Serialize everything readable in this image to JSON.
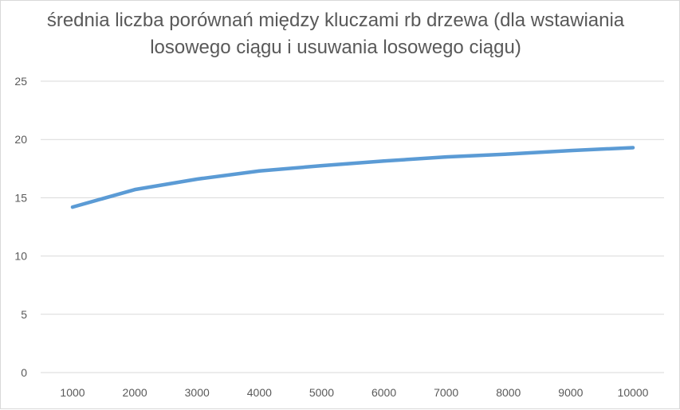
{
  "chart_data": {
    "type": "line",
    "title": "średnia liczba porównań między kluczami rb drzewa (dla wstawiania losowego ciągu i usuwania losowego ciągu)",
    "xlabel": "",
    "ylabel": "",
    "categories": [
      "1000",
      "2000",
      "3000",
      "4000",
      "5000",
      "6000",
      "7000",
      "8000",
      "9000",
      "10000"
    ],
    "series": [
      {
        "values": [
          14.2,
          15.7,
          16.6,
          17.3,
          17.75,
          18.15,
          18.5,
          18.75,
          19.05,
          19.3
        ],
        "color": "#5b9bd5"
      }
    ],
    "ylim": [
      0,
      25
    ],
    "yticks": [
      "0",
      "5",
      "10",
      "15",
      "20",
      "25"
    ],
    "grid": true,
    "legend": "none",
    "colors": {
      "gridline": "#d9d9d9",
      "tick_text": "#595959",
      "title_text": "#595959"
    }
  }
}
